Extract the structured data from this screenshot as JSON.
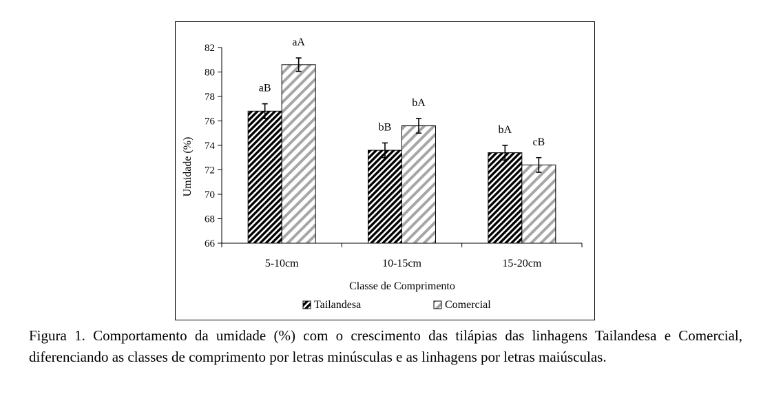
{
  "chart_data": {
    "type": "bar",
    "categories": [
      "5-10cm",
      "10-15cm",
      "15-20cm"
    ],
    "series": [
      {
        "name": "Tailandesa",
        "values": [
          76.8,
          73.6,
          73.4
        ],
        "errors": [
          0.6,
          0.6,
          0.6
        ],
        "labels": [
          "aB",
          "bB",
          "bA"
        ],
        "pattern": "dense-diagonal-hatch",
        "color": "#000000"
      },
      {
        "name": "Comercial",
        "values": [
          80.6,
          75.6,
          72.4
        ],
        "errors": [
          0.55,
          0.6,
          0.6
        ],
        "labels": [
          "aA",
          "bA",
          "cB"
        ],
        "pattern": "light-diagonal-hatch",
        "color": "#a0a0a0"
      }
    ],
    "title": "",
    "xlabel": "Classe de Comprimento",
    "ylabel": "Umidade (%)",
    "ylim": [
      66,
      82
    ],
    "yticks": [
      "66",
      "68",
      "70",
      "72",
      "74",
      "76",
      "78",
      "80",
      "82"
    ],
    "grid": false,
    "legend_position": "bottom"
  },
  "caption": "Figura 1. Comportamento da umidade (%) com o crescimento das tilápias das linhagens Tailandesa e Comercial, diferenciando as classes de comprimento por letras minúsculas e as linhagens por letras maiúsculas."
}
